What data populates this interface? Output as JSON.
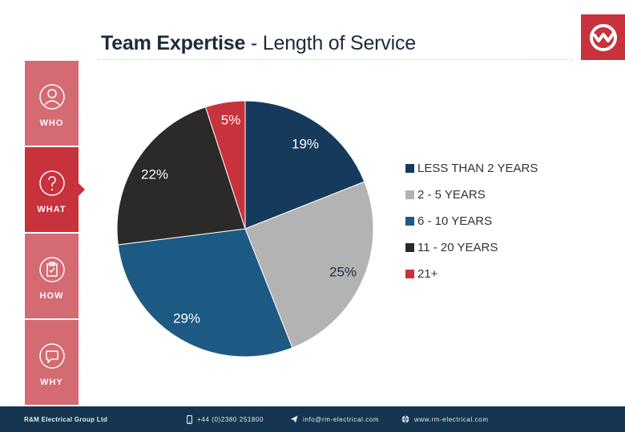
{
  "header": {
    "title_bold": "Team Expertise",
    "title_rest": " - Length of Service"
  },
  "brand": {
    "accent": "#c8323c",
    "accent_light": "#d46a72",
    "footer_bg": "#153551"
  },
  "sidebar": {
    "items": [
      {
        "label": "WHO",
        "icon": "person-icon"
      },
      {
        "label": "WHAT",
        "icon": "question-icon",
        "active": true
      },
      {
        "label": "HOW",
        "icon": "clipboard-icon"
      },
      {
        "label": "WHY",
        "icon": "speech-bubble-icon"
      }
    ]
  },
  "chart_data": {
    "type": "pie",
    "categories": [
      "LESS THAN 2 YEARS",
      "2 - 5 YEARS",
      "6 - 10 YEARS",
      "11 - 20 YEARS",
      "21+"
    ],
    "values": [
      19,
      25,
      29,
      22,
      5
    ],
    "value_labels": [
      "19%",
      "25%",
      "29%",
      "22%",
      "5%"
    ],
    "colors": [
      "#153a5b",
      "#b3b3b3",
      "#1d5a83",
      "#2c2a29",
      "#c8323c"
    ],
    "start_angle_deg": 0,
    "direction": "clockwise",
    "legend_position": "right"
  },
  "footer": {
    "company": "R&M Electrical Group Ltd",
    "phone": "+44 (0)2380 251800",
    "email": "info@rm-electrical.com",
    "website": "www.rm-electrical.com"
  }
}
